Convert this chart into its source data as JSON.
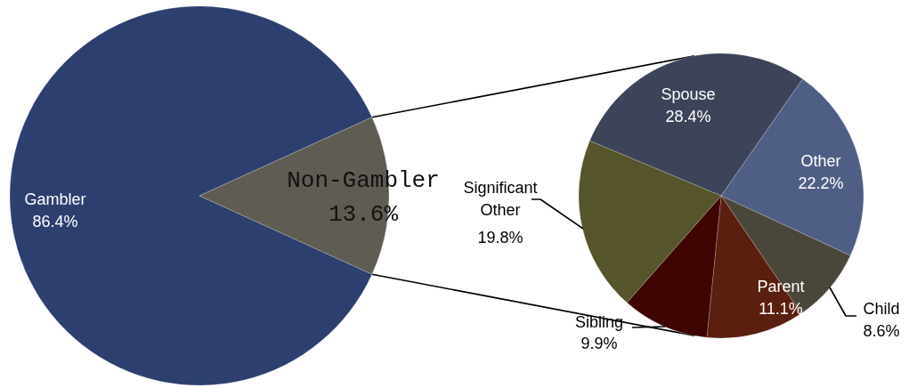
{
  "chart_data": [
    {
      "type": "pie",
      "categories": [
        "Gambler",
        "Non-Gambler"
      ],
      "values": [
        86.4,
        13.6
      ],
      "colors": [
        "#2c3f6e",
        "#5f5c53"
      ],
      "value_labels": [
        "86.4%",
        "13.6%"
      ]
    },
    {
      "type": "pie",
      "categories": [
        "Spouse",
        "Other",
        "Child",
        "Parent",
        "Sibling",
        "Significant Other"
      ],
      "values": [
        28.4,
        22.2,
        8.6,
        11.1,
        9.9,
        19.8
      ],
      "colors": [
        "#3d4358",
        "#4f5e84",
        "#4b463a",
        "#5a1f0f",
        "#3e0503",
        "#55542a"
      ],
      "value_labels": [
        "28.4%",
        "22.2%",
        "8.6%",
        "11.1%",
        "9.9%",
        "19.8%"
      ]
    }
  ]
}
